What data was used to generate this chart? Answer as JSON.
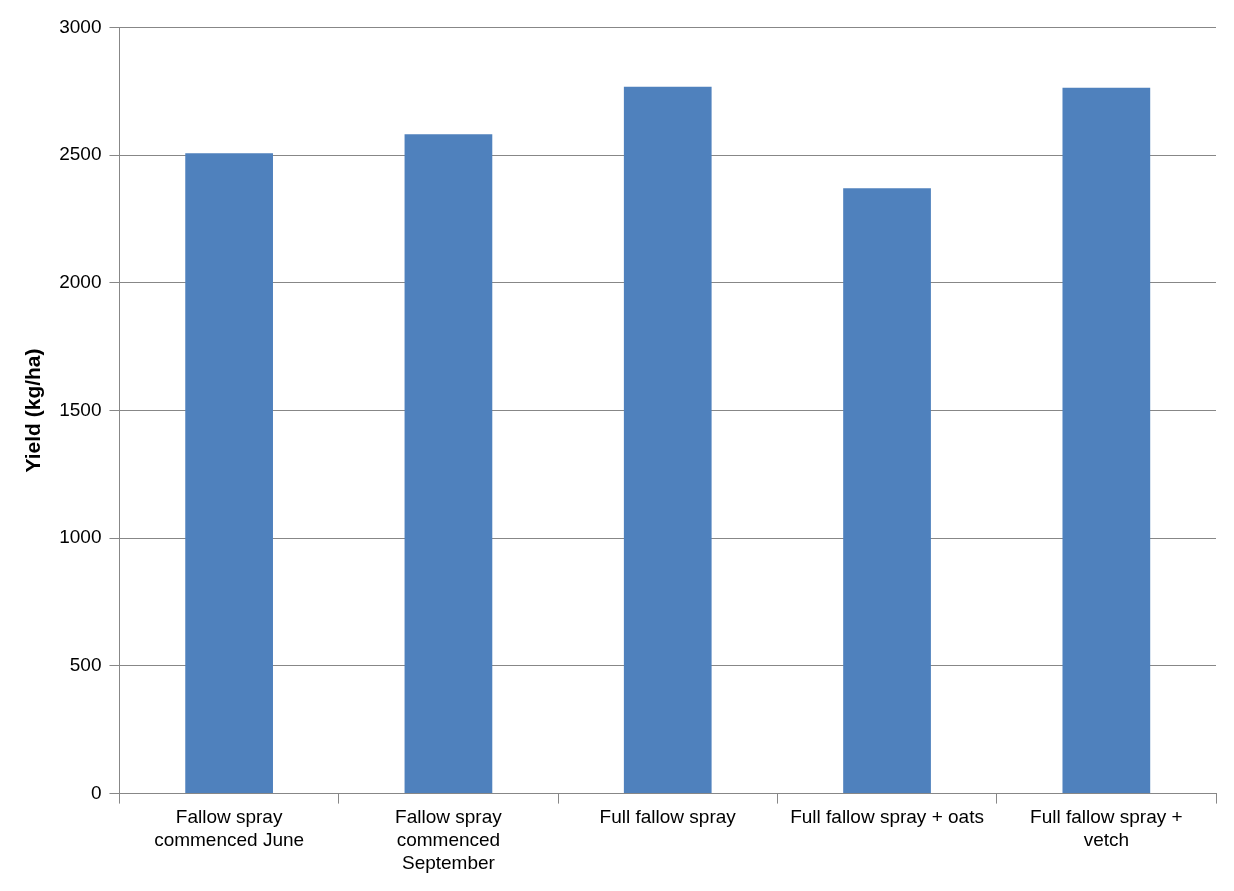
{
  "chart_data": {
    "type": "bar",
    "ylabel": "Yield (kg/ha)",
    "categories": [
      "Fallow spray commenced June",
      "Fallow spray commenced September",
      "Full fallow spray",
      "Full fallow spray + oats",
      "Full fallow spray + vetch"
    ],
    "values": [
      2507,
      2582,
      2768,
      2370,
      2764
    ],
    "color": "#4f81bd",
    "ylim": [
      0,
      3000
    ],
    "yticks": [
      0,
      500,
      1000,
      1500,
      2000,
      2500,
      3000
    ],
    "grid": "y",
    "legend": false
  }
}
